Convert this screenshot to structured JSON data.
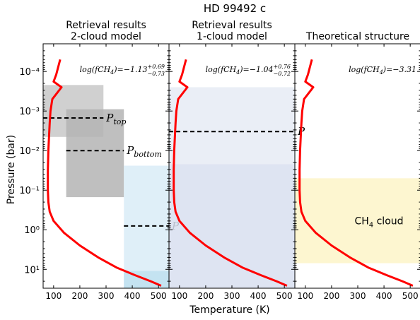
{
  "figure": {
    "title": "HD 99492 c",
    "ylabel": "Pressure (bar)",
    "xlabel": "Temperature (K)"
  },
  "chart_data": [
    {
      "type": "line",
      "title": "Retrieval results\n2-cloud model",
      "annotation": "log(fCH4)=−1.13 +0.69 −0.73",
      "annotation_main": "log(fCH",
      "annotation_sub": "4",
      "annotation_rest": ")=−1.13",
      "annotation_sup": "+0.69",
      "annotation_inf": "−0.73",
      "xlim": [
        60,
        540
      ],
      "ylim": [
        30,
        2e-05
      ],
      "yscale": "log",
      "xticks": [
        100,
        200,
        300,
        400,
        500
      ],
      "yticks": [
        0.0001,
        0.001,
        0.01,
        0.1,
        1,
        10
      ],
      "ytick_labels": [
        "10⁻⁴",
        "10⁻³",
        "10⁻²",
        "10⁻¹",
        "10⁰",
        "10¹"
      ],
      "series": [
        {
          "kind": "temperature-profile",
          "color": "#ff0000",
          "x": [
            125,
            110,
            100,
            130,
            95,
            88,
            85,
            82,
            80,
            78,
            78,
            80,
            85,
            100,
            140,
            200,
            270,
            340,
            410,
            470,
            510
          ],
          "y": [
            5e-05,
            0.00012,
            0.00018,
            0.00025,
            0.0005,
            0.001,
            0.002,
            0.005,
            0.01,
            0.03,
            0.1,
            0.2,
            0.35,
            0.6,
            1.2,
            2.5,
            5,
            9,
            14,
            20,
            26
          ]
        }
      ],
      "regions": [
        {
          "x": [
            60,
            290
          ],
          "y": [
            0.00022,
            0.0045
          ],
          "color": "#c8c8c8"
        },
        {
          "x": [
            148,
            368
          ],
          "y": [
            0.0009,
            0.15
          ],
          "color": "#b4b4b4"
        },
        {
          "x": [
            368,
            540
          ],
          "y": [
            0.024,
            30
          ],
          "color": "#d9ecf7"
        },
        {
          "x": [
            368,
            540
          ],
          "y": [
            11,
            30
          ],
          "color": "#bfe0f0"
        }
      ],
      "levels": [
        {
          "label": "P",
          "sub": "top",
          "y": 0.0015,
          "x": [
            60,
            290
          ]
        },
        {
          "label": "P",
          "sub": "bottom",
          "y": 0.01,
          "x": [
            148,
            368
          ]
        },
        {
          "label": "P",
          "sub": "",
          "y": 0.8,
          "x": [
            368,
            540
          ]
        }
      ]
    },
    {
      "type": "line",
      "title": "Retrieval results\n1-cloud model",
      "annotation_main": "log(fCH",
      "annotation_sub": "4",
      "annotation_rest": ")=−1.04",
      "annotation_sup": "+0.76",
      "annotation_inf": "−0.72",
      "xlim": [
        60,
        540
      ],
      "ylim": [
        30,
        2e-05
      ],
      "yscale": "log",
      "xticks": [
        100,
        200,
        300,
        400,
        500
      ],
      "series": [
        {
          "kind": "temperature-profile",
          "color": "#ff0000",
          "x": [
            125,
            110,
            100,
            130,
            95,
            88,
            85,
            82,
            80,
            78,
            78,
            80,
            85,
            100,
            140,
            200,
            270,
            340,
            410,
            470,
            510
          ],
          "y": [
            5e-05,
            0.00012,
            0.00018,
            0.00025,
            0.0005,
            0.001,
            0.002,
            0.005,
            0.01,
            0.03,
            0.1,
            0.2,
            0.35,
            0.6,
            1.2,
            2.5,
            5,
            9,
            14,
            20,
            26
          ]
        }
      ],
      "regions": [
        {
          "x": [
            60,
            540
          ],
          "y": [
            0.00025,
            0.022
          ],
          "color": "#e6ebf5"
        },
        {
          "x": [
            60,
            540
          ],
          "y": [
            0.022,
            30
          ],
          "color": "#d8dff0"
        }
      ],
      "levels": [
        {
          "label": "P",
          "sub": "",
          "y": 0.0033,
          "x": [
            60,
            540
          ]
        }
      ]
    },
    {
      "type": "line",
      "title": "Theoretical structure",
      "annotation_main": "log(fCH",
      "annotation_sub": "4",
      "annotation_rest": ")=−3.31",
      "annotation_sup": "",
      "annotation_inf": "",
      "xlim": [
        60,
        540
      ],
      "ylim": [
        30,
        2e-05
      ],
      "yscale": "log",
      "xticks": [
        100,
        200,
        300,
        400,
        500
      ],
      "series": [
        {
          "kind": "temperature-profile",
          "color": "#ff0000",
          "x": [
            125,
            110,
            100,
            130,
            95,
            88,
            85,
            82,
            80,
            78,
            78,
            80,
            85,
            100,
            140,
            200,
            270,
            340,
            410,
            470,
            510
          ],
          "y": [
            5e-05,
            0.00012,
            0.00018,
            0.00025,
            0.0005,
            0.001,
            0.002,
            0.005,
            0.01,
            0.03,
            0.1,
            0.2,
            0.35,
            0.6,
            1.2,
            2.5,
            5,
            9,
            14,
            20,
            26
          ]
        }
      ],
      "regions": [
        {
          "x": [
            60,
            540
          ],
          "y": [
            0.05,
            7
          ],
          "color": "#fdf5c8"
        }
      ],
      "levels": [],
      "cloud_label_main": "CH",
      "cloud_label_sub": "4",
      "cloud_label_rest": "  cloud"
    }
  ]
}
